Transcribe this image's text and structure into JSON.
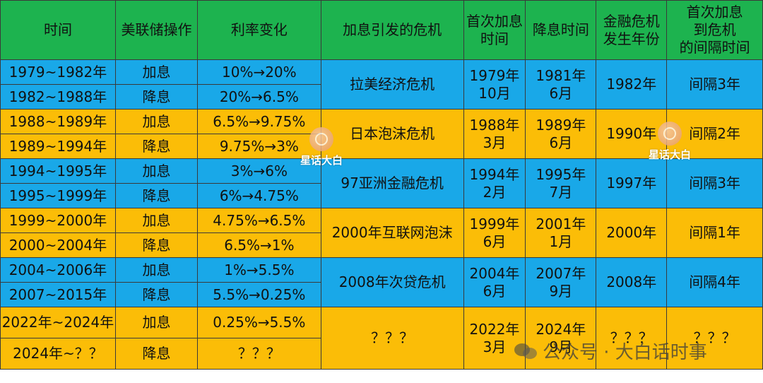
{
  "headers": [
    "时间",
    "美联储操作",
    "利率变化",
    "加息引发的危机",
    "首次加息\n时间",
    "降息时间",
    "金融危机\n发生年份",
    "首次加息\n到危机\n的间隔时间"
  ],
  "periods": [
    {
      "color": "blue",
      "rows": [
        {
          "time": "1979~1982年",
          "op": "加息",
          "rate": "10%→20%"
        },
        {
          "time": "1982~1988年",
          "op": "降息",
          "rate": "20%→6.5%"
        }
      ],
      "crisis": "拉美经济危机",
      "first_hike": "1979年\n10月",
      "cut_time": "1981年\n6月",
      "crisis_year": "1982年",
      "interval": "间隔3年"
    },
    {
      "color": "gold",
      "rows": [
        {
          "time": "1988~1989年",
          "op": "加息",
          "rate": "6.5%→9.75%"
        },
        {
          "time": "1989~1994年",
          "op": "降息",
          "rate": "9.75%→3%"
        }
      ],
      "crisis": "日本泡沫危机",
      "first_hike": "1988年\n3月",
      "cut_time": "1989年\n6月",
      "crisis_year": "1990年",
      "interval": "间隔2年"
    },
    {
      "color": "blue",
      "rows": [
        {
          "time": "1994~1995年",
          "op": "加息",
          "rate": "3%→6%"
        },
        {
          "time": "1995~1999年",
          "op": "降息",
          "rate": "6%→4.75%"
        }
      ],
      "crisis": "97亚洲金融危机",
      "first_hike": "1994年\n2月",
      "cut_time": "1995年\n7月",
      "crisis_year": "1997年",
      "interval": "间隔3年"
    },
    {
      "color": "gold",
      "rows": [
        {
          "time": "1999~2000年",
          "op": "加息",
          "rate": "4.75%→6.5%"
        },
        {
          "time": "2000~2004年",
          "op": "降息",
          "rate": "6.5%→1%"
        }
      ],
      "crisis": "2000年互联网泡沫",
      "first_hike": "1999年\n6月",
      "cut_time": "2001年\n1月",
      "crisis_year": "2000年",
      "interval": "间隔1年"
    },
    {
      "color": "blue",
      "rows": [
        {
          "time": "2004~2006年",
          "op": "加息",
          "rate": "1%→5.5%"
        },
        {
          "time": "2007~2015年",
          "op": "降息",
          "rate": "5.5%→0.25%"
        }
      ],
      "crisis": "2008年次贷危机",
      "first_hike": "2004年\n6月",
      "cut_time": "2007年\n9月",
      "crisis_year": "2008年",
      "interval": "间隔4年"
    },
    {
      "color": "gold",
      "rows": [
        {
          "time": "2022年~2024年",
          "op": "加息",
          "rate": "0.25%→5.5%"
        },
        {
          "time": "2024年~？？",
          "op": "降息",
          "rate": "？？？"
        }
      ],
      "crisis": "？？？",
      "first_hike": "2022年\n3月",
      "cut_time": "2024年\n9月",
      "crisis_year": "？？？",
      "interval": "？？？"
    }
  ],
  "watermarks": {
    "stamp_text": "星话大白",
    "footer_text": "公众号 · 大白话时事"
  },
  "colors": {
    "header_green": "#1db34f",
    "row_blue": "#19a8e8",
    "row_gold": "#fbbd07"
  }
}
